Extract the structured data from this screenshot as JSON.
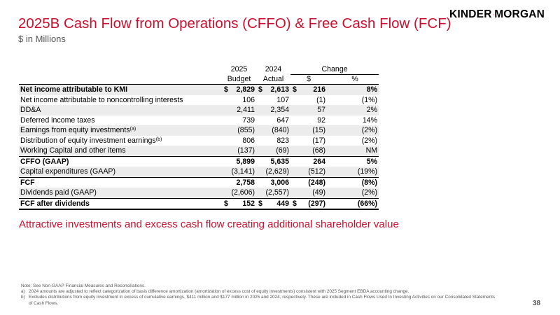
{
  "header": {
    "title": "2025B Cash Flow from Operations (CFFO) & Free Cash Flow (FCF)",
    "subtitle": "$ in Millions",
    "logo": {
      "left": "KINDER",
      "right": "MORGAN"
    }
  },
  "table": {
    "columns": {
      "budget_year": "2025",
      "budget_label": "Budget",
      "actual_year": "2024",
      "actual_label": "Actual",
      "change": "Change",
      "change_dollar": "$",
      "change_pct": "%"
    },
    "rows": [
      {
        "label": "Net income attributable to KMI",
        "sup": "",
        "dol1": "$",
        "budget": "2,829",
        "dol2": "$",
        "actual": "2,613",
        "dol3": "$",
        "chg": "216",
        "pct": "8%"
      },
      {
        "label": "Net income attributable to noncontrolling interests",
        "sup": "",
        "dol1": "",
        "budget": "106",
        "dol2": "",
        "actual": "107",
        "dol3": "",
        "chg": "(1)",
        "pct": "(1%)"
      },
      {
        "label": "DD&A",
        "sup": "",
        "dol1": "",
        "budget": "2,411",
        "dol2": "",
        "actual": "2,354",
        "dol3": "",
        "chg": "57",
        "pct": "2%"
      },
      {
        "label": "Deferred income taxes",
        "sup": "",
        "dol1": "",
        "budget": "739",
        "dol2": "",
        "actual": "647",
        "dol3": "",
        "chg": "92",
        "pct": "14%"
      },
      {
        "label": "Earnings from equity investments",
        "sup": "(a)",
        "dol1": "",
        "budget": "(855)",
        "dol2": "",
        "actual": "(840)",
        "dol3": "",
        "chg": "(15)",
        "pct": "(2%)"
      },
      {
        "label": "Distribution of equity investment earnings",
        "sup": "(b)",
        "dol1": "",
        "budget": "806",
        "dol2": "",
        "actual": "823",
        "dol3": "",
        "chg": "(17)",
        "pct": "(2%)"
      },
      {
        "label": "Working Capital and other items",
        "sup": "",
        "dol1": "",
        "budget": "(137)",
        "dol2": "",
        "actual": "(69)",
        "dol3": "",
        "chg": "(68)",
        "pct": "NM"
      },
      {
        "label": "CFFO (GAAP)",
        "sup": "",
        "dol1": "",
        "budget": "5,899",
        "dol2": "",
        "actual": "5,635",
        "dol3": "",
        "chg": "264",
        "pct": "5%"
      },
      {
        "label": "Capital expenditures (GAAP)",
        "sup": "",
        "dol1": "",
        "budget": "(3,141)",
        "dol2": "",
        "actual": "(2,629)",
        "dol3": "",
        "chg": "(512)",
        "pct": "(19%)"
      },
      {
        "label": "FCF",
        "sup": "",
        "dol1": "",
        "budget": "2,758",
        "dol2": "",
        "actual": "3,006",
        "dol3": "",
        "chg": "(248)",
        "pct": "(8%)"
      },
      {
        "label": "Dividends paid (GAAP)",
        "sup": "",
        "dol1": "",
        "budget": "(2,606)",
        "dol2": "",
        "actual": "(2,557)",
        "dol3": "",
        "chg": "(49)",
        "pct": "(2%)"
      },
      {
        "label": "FCF after dividends",
        "sup": "",
        "dol1": "$",
        "budget": "152",
        "dol2": "$",
        "actual": "449",
        "dol3": "$",
        "chg": "(297)",
        "pct": "(66%)"
      }
    ]
  },
  "tagline": "Attractive investments and excess cash flow creating additional shareholder value",
  "footnotes": {
    "note": "Note: See Non-GAAP Financial Measures and Reconciliations.",
    "a_marker": "a)",
    "a_text": "2024 amounts are adjusted to reflect categorization of basis difference amortization (amortization of excess cost of equity investments) consistent with 2025 Segment EBDA accounting change.",
    "b_marker": "b)",
    "b_text": "Excludes distributions from equity investment in excess of cumulative earnings, $411 million and $177 million in 2025 and 2024, respectively. These are included in Cash Flows Used In Investing Activities on our Consolidated Statements of Cash Flows."
  },
  "page_number": "38",
  "colors": {
    "accent": "#c8102e",
    "row_shade": "#ececec",
    "text_gray": "#555555"
  }
}
